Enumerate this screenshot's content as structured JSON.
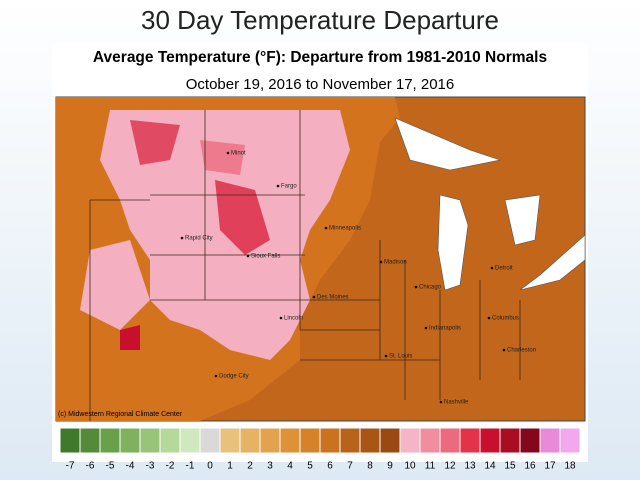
{
  "slide_title": "30 Day Temperature Departure",
  "map": {
    "title": "Average Temperature (°F): Departure from 1981-2010 Normals",
    "subtitle": "October 19, 2016 to November 17, 2016",
    "credit": "(c) Midwestern Regional Climate Center",
    "cities": [
      "Minot",
      "Fargo",
      "Rapid City",
      "Minneapolis",
      "Sioux Falls",
      "Madison",
      "Detroit",
      "Des Moines",
      "Chicago",
      "Lincoln",
      "Indianapolis",
      "Columbus",
      "St. Louis",
      "Charleston",
      "Dodge City",
      "Nashville"
    ]
  },
  "legend": {
    "values": [
      -7,
      -6,
      -5,
      -4,
      -3,
      -2,
      -1,
      0,
      1,
      2,
      3,
      4,
      5,
      6,
      7,
      8,
      9,
      10,
      11,
      12,
      13,
      14,
      15,
      16,
      17,
      18
    ],
    "colors": [
      "#3f7a2c",
      "#548a3a",
      "#69a04c",
      "#7fb15e",
      "#98c47a",
      "#b4d99a",
      "#cfe8bd",
      "#d9d9d9",
      "#e8c27c",
      "#e6b264",
      "#e3a24d",
      "#de9238",
      "#d6822a",
      "#c97220",
      "#b8631a",
      "#a85515",
      "#9a4912",
      "#f4b6c4",
      "#f08ea0",
      "#ec6a7e",
      "#e4324a",
      "#c8102e",
      "#a80d22",
      "#84081a",
      "#e88ad8",
      "#f3a8ee"
    ]
  }
}
